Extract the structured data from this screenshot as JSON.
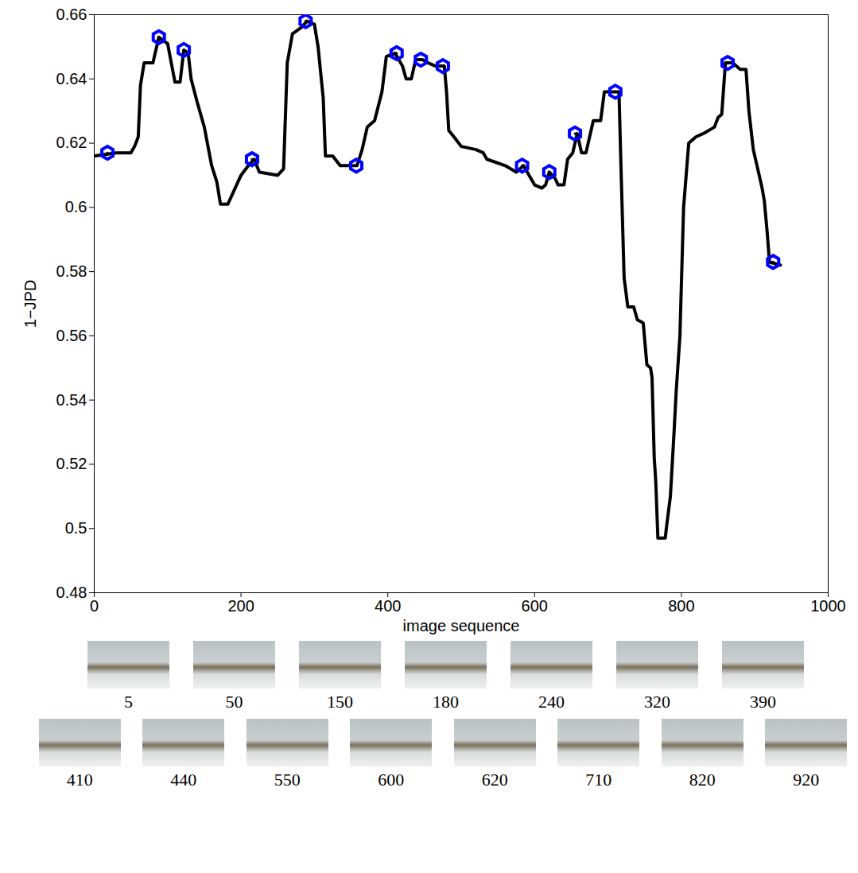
{
  "chart_data": {
    "type": "line",
    "xlabel": "image sequence",
    "ylabel": "1−JPD",
    "xlim": [
      0,
      1000
    ],
    "xticks": [
      0,
      200,
      400,
      600,
      800,
      1000
    ],
    "ylim": [
      0.48,
      0.66
    ],
    "yticks": [
      0.48,
      0.5,
      0.52,
      0.54,
      0.56,
      0.58,
      0.6,
      0.62,
      0.64,
      0.66
    ],
    "grid": false,
    "x": [
      0,
      30,
      50,
      55,
      60,
      63,
      68,
      80,
      88,
      100,
      105,
      110,
      117,
      122,
      128,
      132,
      140,
      150,
      160,
      167,
      172,
      182,
      190,
      200,
      210,
      218,
      225,
      250,
      258,
      263,
      270,
      282,
      290,
      300,
      305,
      312,
      315,
      325,
      335,
      350,
      358,
      365,
      372,
      382,
      392,
      398,
      410,
      420,
      425,
      432,
      438,
      447,
      455,
      465,
      477,
      480,
      483,
      490,
      500,
      520,
      530,
      535,
      560,
      575,
      585,
      590,
      600,
      610,
      615,
      620,
      628,
      632,
      640,
      645,
      652,
      658,
      664,
      670,
      680,
      690,
      695,
      715,
      718,
      722,
      727,
      735,
      740,
      748,
      753,
      758,
      760,
      763,
      765,
      768,
      778,
      780,
      785,
      790,
      793,
      798,
      803,
      810,
      820,
      830,
      845,
      850,
      855,
      860,
      870,
      880,
      888,
      892,
      898,
      905,
      910,
      913,
      917,
      920,
      935
    ],
    "series": [
      {
        "color": "#000000",
        "values": [
          0.616,
          0.617,
          0.617,
          0.619,
          0.622,
          0.638,
          0.645,
          0.645,
          0.653,
          0.651,
          0.645,
          0.639,
          0.639,
          0.649,
          0.648,
          0.64,
          0.633,
          0.625,
          0.613,
          0.608,
          0.601,
          0.601,
          0.605,
          0.61,
          0.613,
          0.615,
          0.611,
          0.61,
          0.612,
          0.645,
          0.654,
          0.656,
          0.658,
          0.657,
          0.65,
          0.634,
          0.616,
          0.616,
          0.613,
          0.613,
          0.613,
          0.618,
          0.625,
          0.627,
          0.636,
          0.647,
          0.648,
          0.644,
          0.64,
          0.64,
          0.646,
          0.646,
          0.645,
          0.644,
          0.644,
          0.636,
          0.624,
          0.622,
          0.619,
          0.618,
          0.617,
          0.615,
          0.613,
          0.611,
          0.613,
          0.611,
          0.607,
          0.606,
          0.607,
          0.611,
          0.609,
          0.607,
          0.607,
          0.615,
          0.617,
          0.623,
          0.617,
          0.617,
          0.627,
          0.627,
          0.636,
          0.636,
          0.61,
          0.578,
          0.569,
          0.569,
          0.565,
          0.564,
          0.551,
          0.55,
          0.547,
          0.522,
          0.515,
          0.497,
          0.497,
          0.501,
          0.51,
          0.53,
          0.543,
          0.56,
          0.6,
          0.62,
          0.622,
          0.623,
          0.625,
          0.628,
          0.629,
          0.645,
          0.645,
          0.643,
          0.643,
          0.63,
          0.618,
          0.611,
          0.606,
          0.602,
          0.592,
          0.583,
          0.582
        ]
      }
    ],
    "markers": {
      "color": "#0000ff",
      "marker": "hexagon",
      "x": [
        18,
        88,
        122,
        215,
        288,
        357,
        412,
        445,
        475,
        583,
        620,
        655,
        710,
        863,
        925
      ],
      "y": [
        0.617,
        0.653,
        0.649,
        0.615,
        0.658,
        0.613,
        0.648,
        0.646,
        0.644,
        0.613,
        0.611,
        0.623,
        0.636,
        0.645,
        0.583
      ]
    }
  },
  "thumbnails": {
    "rows": [
      [
        5,
        50,
        150,
        180,
        240,
        320,
        390
      ],
      [
        410,
        440,
        550,
        600,
        620,
        710,
        820,
        920
      ]
    ]
  }
}
